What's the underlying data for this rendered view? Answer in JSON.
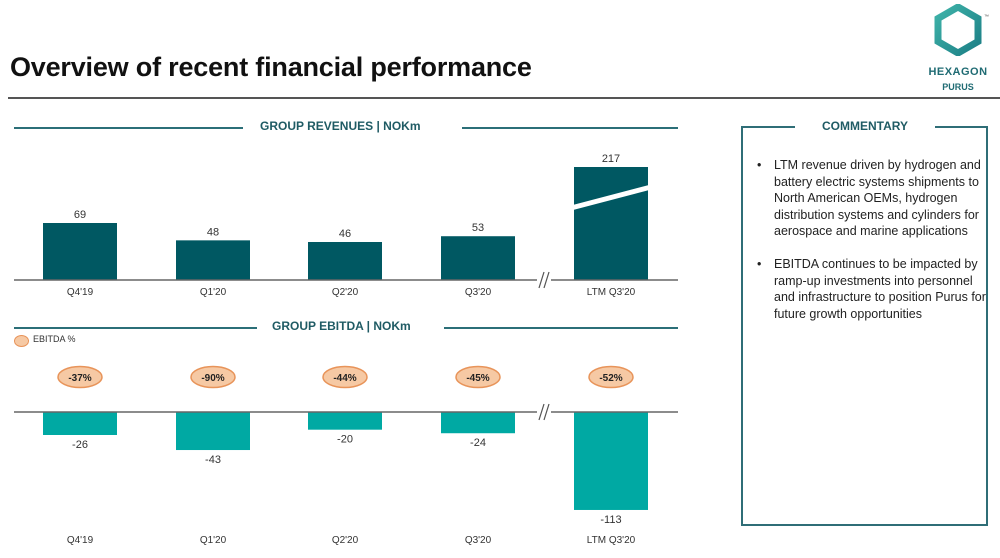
{
  "header": {
    "title": "Overview of recent financial performance",
    "logo": {
      "brand": "HEXAGON",
      "sub": "PURUS",
      "tm": "™"
    }
  },
  "commentary": {
    "title": "COMMENTARY",
    "bullet_glyph": "•",
    "bullets": [
      "LTM revenue driven by hydrogen and battery electric systems shipments to North American OEMs, hydrogen distribution systems and cylinders for aerospace and marine applications",
      "EBITDA continues to be impacted by ramp-up investments into personnel and infrastructure to position Purus for future growth opportunities"
    ]
  },
  "colors": {
    "revenue_bar": "#005862",
    "ebitda_bar": "#00a9a3",
    "header_teal": "#1f5b64",
    "oval_fill": "#f6c9a4",
    "oval_stroke": "#e8945a"
  },
  "chart_data": [
    {
      "type": "bar",
      "title": "GROUP REVENUES | NOKm",
      "categories": [
        "Q4'19",
        "Q1'20",
        "Q2'20",
        "Q3'20",
        "LTM Q3'20"
      ],
      "values": [
        69,
        48,
        46,
        53,
        217
      ],
      "value_labels": [
        "69",
        "48",
        "46",
        "53",
        "217"
      ],
      "axis_break_before": "LTM Q3'20",
      "bar_break_on": "LTM Q3'20",
      "break_symbol": "//",
      "xlabel": "",
      "ylabel": "",
      "grid": false
    },
    {
      "type": "bar",
      "title": "GROUP EBITDA | NOKm",
      "categories": [
        "Q4'19",
        "Q1'20",
        "Q2'20",
        "Q3'20",
        "LTM Q3'20"
      ],
      "values": [
        -26,
        -43,
        -20,
        -24,
        -113
      ],
      "value_labels": [
        "-26",
        "-43",
        "-20",
        "-24",
        "-113"
      ],
      "legend": [
        "EBITDA %"
      ],
      "legend_position": "top-left",
      "ebitda_margin_labels": [
        "-37%",
        "-90%",
        "-44%",
        "-45%",
        "-52%"
      ],
      "axis_break_before": "LTM Q3'20",
      "break_symbol": "//",
      "xlabel": "",
      "ylabel": "",
      "grid": false
    }
  ]
}
